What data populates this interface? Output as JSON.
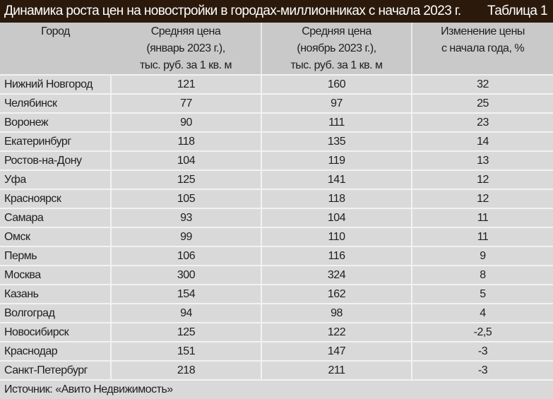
{
  "title": "Динамика роста цен на новостройки в городах-миллионниках с начала 2023 г.",
  "table_label": "Таблица 1",
  "source": "Источник: «Авито Недвижимость»",
  "colors": {
    "title_bg": "#2b1a0c",
    "header_bg": "#c9c9c9",
    "row_bg": "#d9d9d9"
  },
  "chart_data": {
    "type": "table",
    "title": "Динамика роста цен на новостройки в городах-миллионниках с начала 2023 г.",
    "columns": [
      [
        "Город"
      ],
      [
        "Средняя цена",
        "(январь 2023 г.),",
        "тыс. руб. за 1 кв. м"
      ],
      [
        "Средняя цена",
        "(ноябрь 2023 г.),",
        "тыс. руб. за 1 кв. м"
      ],
      [
        "Изменение цены",
        "с начала года, %"
      ]
    ],
    "rows": [
      [
        "Нижний Новгород",
        "121",
        "160",
        "32"
      ],
      [
        "Челябинск",
        "77",
        "97",
        "25"
      ],
      [
        "Воронеж",
        "90",
        "111",
        "23"
      ],
      [
        "Екатеринбург",
        "118",
        "135",
        "14"
      ],
      [
        "Ростов-на-Дону",
        "104",
        "119",
        "13"
      ],
      [
        "Уфа",
        "125",
        "141",
        "12"
      ],
      [
        "Красноярск",
        "105",
        "118",
        "12"
      ],
      [
        "Самара",
        "93",
        "104",
        "11"
      ],
      [
        "Омск",
        "99",
        "110",
        "11"
      ],
      [
        "Пермь",
        "106",
        "116",
        "9"
      ],
      [
        "Москва",
        "300",
        "324",
        "8"
      ],
      [
        "Казань",
        "154",
        "162",
        "5"
      ],
      [
        "Волгоград",
        "94",
        "98",
        "4"
      ],
      [
        "Новосибирск",
        "125",
        "122",
        "-2,5"
      ],
      [
        "Краснодар",
        "151",
        "147",
        "-3"
      ],
      [
        "Санкт-Петербург",
        "218",
        "211",
        "-3"
      ]
    ]
  }
}
